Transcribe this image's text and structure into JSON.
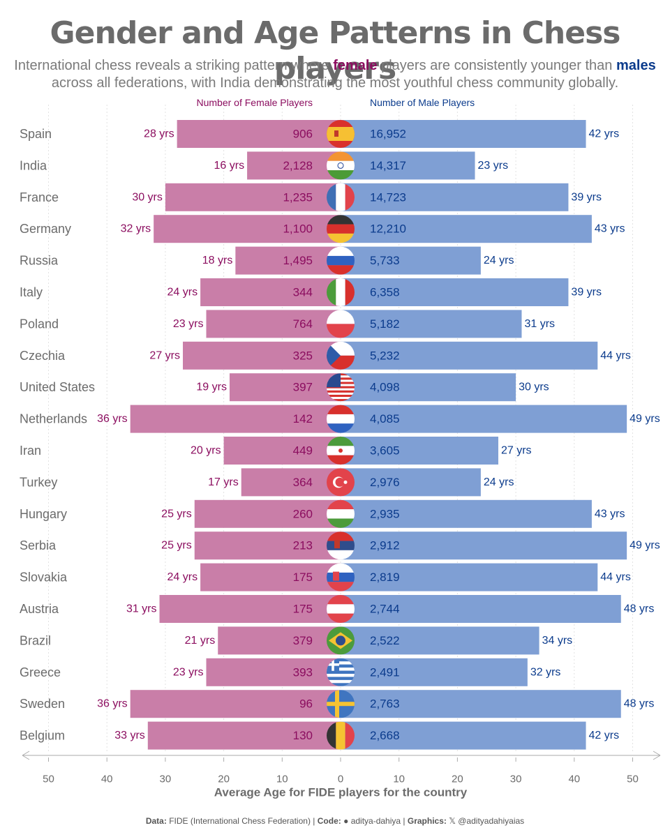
{
  "header": {
    "title": "Gender and Age Patterns in Chess players",
    "subtitle_pre": "International chess reveals a striking pattern where ",
    "subtitle_female": "female",
    "subtitle_mid": " players are consistently younger than ",
    "subtitle_male": "males",
    "subtitle_post": " across all federations, with India demonstrating the most youthful chess community globally."
  },
  "colors": {
    "female_bar": "#c97ea8",
    "male_bar": "#7f9fd4",
    "female_text": "#8b0d5f",
    "male_text": "#0b3b8c",
    "label_text": "#6b6b6b",
    "axis": "#aaaaaa"
  },
  "chart_data": {
    "type": "bar",
    "orientation": "horizontal-diverging",
    "xlabel": "Average Age for FIDE players for the country",
    "female_header": "Number of Female Players",
    "male_header": "Number of Male Players",
    "age_suffix": " yrs",
    "xlim": [
      -50,
      50
    ],
    "ticks": [
      -50,
      -40,
      -30,
      -20,
      -10,
      0,
      10,
      20,
      30,
      40,
      50
    ],
    "tick_labels": [
      "50",
      "40",
      "30",
      "20",
      "10",
      "0",
      "10",
      "20",
      "30",
      "40",
      "50"
    ],
    "grid": true,
    "categories": [
      "Spain",
      "India",
      "France",
      "Germany",
      "Russia",
      "Italy",
      "Poland",
      "Czechia",
      "United States",
      "Netherlands",
      "Iran",
      "Turkey",
      "Hungary",
      "Serbia",
      "Slovakia",
      "Austria",
      "Brazil",
      "Greece",
      "Sweden",
      "Belgium"
    ],
    "flags": [
      "spain-flag-icon",
      "india-flag-icon",
      "france-flag-icon",
      "germany-flag-icon",
      "russia-flag-icon",
      "italy-flag-icon",
      "poland-flag-icon",
      "czechia-flag-icon",
      "usa-flag-icon",
      "netherlands-flag-icon",
      "iran-flag-icon",
      "turkey-flag-icon",
      "hungary-flag-icon",
      "serbia-flag-icon",
      "slovakia-flag-icon",
      "austria-flag-icon",
      "brazil-flag-icon",
      "greece-flag-icon",
      "sweden-flag-icon",
      "belgium-flag-icon"
    ],
    "series": [
      {
        "name": "Female",
        "ages": [
          28,
          16,
          30,
          32,
          18,
          24,
          23,
          27,
          19,
          36,
          20,
          17,
          25,
          25,
          24,
          31,
          21,
          23,
          36,
          33
        ],
        "counts": [
          "906",
          "2,128",
          "1,235",
          "1,100",
          "1,495",
          "344",
          "764",
          "325",
          "397",
          "142",
          "449",
          "364",
          "260",
          "213",
          "175",
          "175",
          "379",
          "393",
          "96",
          "130"
        ]
      },
      {
        "name": "Male",
        "ages": [
          42,
          23,
          39,
          43,
          24,
          39,
          31,
          44,
          30,
          49,
          27,
          24,
          43,
          49,
          44,
          48,
          34,
          32,
          48,
          42
        ],
        "counts": [
          "16,952",
          "14,317",
          "14,723",
          "12,210",
          "5,733",
          "6,358",
          "5,182",
          "5,232",
          "4,098",
          "4,085",
          "3,605",
          "2,976",
          "2,935",
          "2,912",
          "2,819",
          "2,744",
          "2,522",
          "2,491",
          "2,763",
          "2,668"
        ]
      }
    ]
  },
  "footer": {
    "data_label": "Data:",
    "data_value": "FIDE (International Chess Federation)",
    "code_label": "Code:",
    "code_value": "aditya-dahiya",
    "graphics_label": "Graphics:",
    "graphics_value": "@adityadahiyaias"
  }
}
